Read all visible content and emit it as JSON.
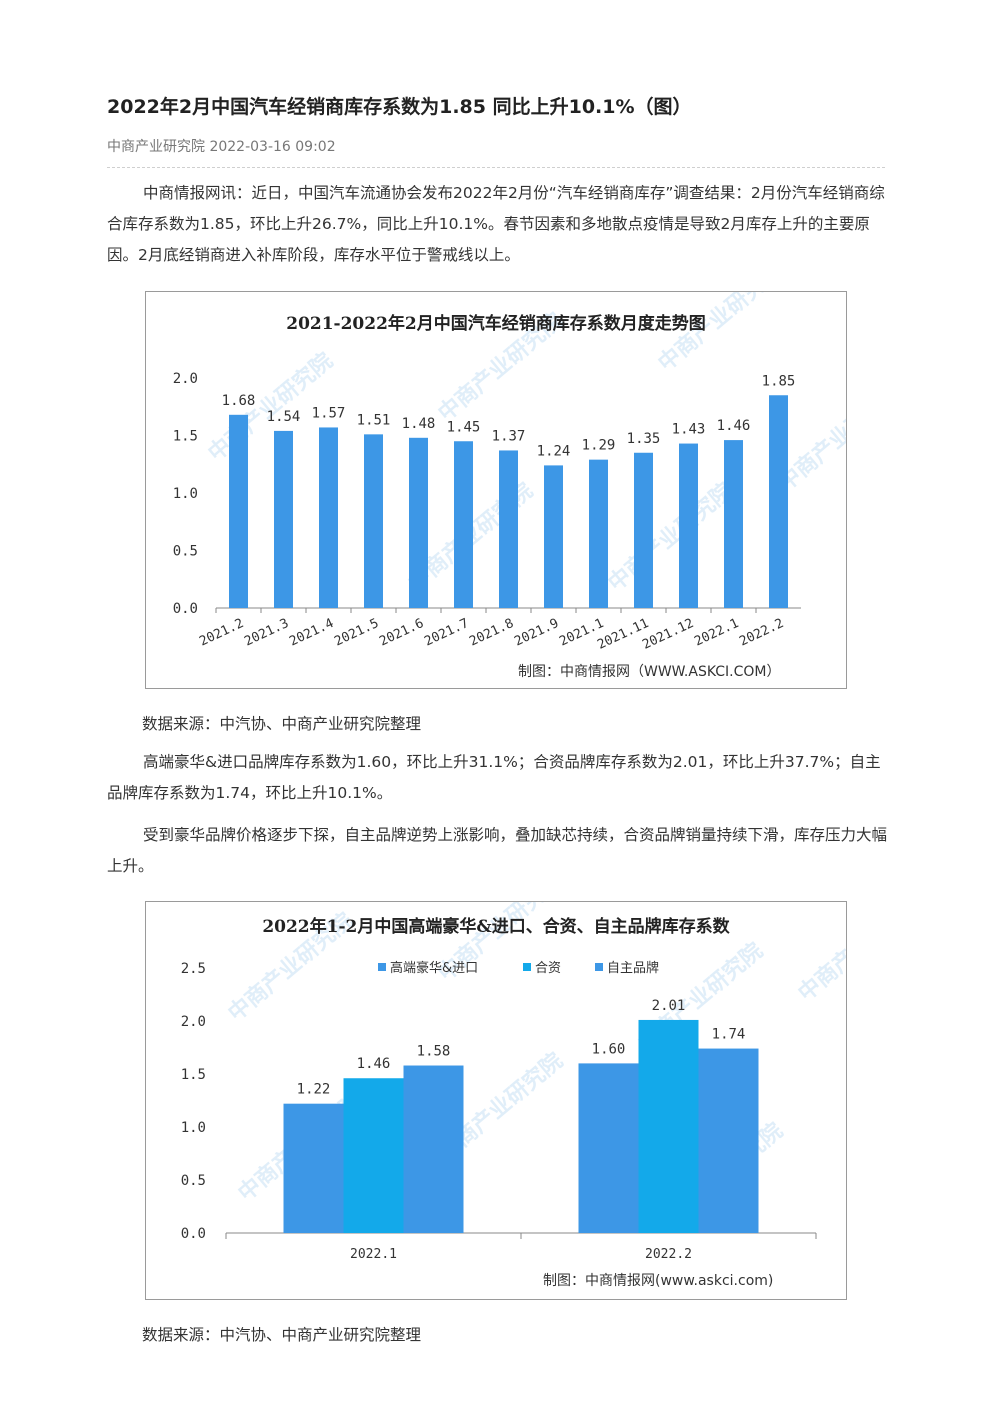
{
  "article": {
    "title": "2022年2月中国汽车经销商库存系数为1.85 同比上升10.1%（图）",
    "meta": "中商产业研究院 2022-03-16 09:02",
    "paragraphs": [
      "中商情报网讯：近日，中国汽车流通协会发布2022年2月份“汽车经销商库存”调查结果：2月份汽车经销商综合库存系数为1.85，环比上升26.7%，同比上升10.1%。春节因素和多地散点疫情是导致2月库存上升的主要原因。2月底经销商进入补库阶段，库存水平位于警戒线以上。",
      "高端豪华&进口品牌库存系数为1.60，环比上升31.1%；合资品牌库存系数为2.01，环比上升37.7%；自主品牌库存系数为1.74，环比上升10.1%。",
      "受到豪华品牌价格逐步下探，自主品牌逆势上涨影响，叠加缺芯持续，合资品牌销量持续下滑，库存压力大幅上升。"
    ],
    "source1": "数据来源：中汽协、中商产业研究院整理",
    "source2": "数据来源：中汽协、中商产业研究院整理"
  },
  "colors": {
    "bar": "#3d97e6",
    "series": [
      "#3d97e6",
      "#13a9ea",
      "#3d97e6"
    ],
    "axis": "#888888"
  },
  "watermark": "中商产业研究院",
  "chart_data": [
    {
      "type": "bar",
      "title": "2021-2022年2月中国汽车经销商库存系数月度走势图",
      "categories": [
        "2021.2",
        "2021.3",
        "2021.4",
        "2021.5",
        "2021.6",
        "2021.7",
        "2021.8",
        "2021.9",
        "2021.1",
        "2021.11",
        "2021.12",
        "2022.1",
        "2022.2"
      ],
      "values": [
        1.68,
        1.54,
        1.57,
        1.51,
        1.48,
        1.45,
        1.37,
        1.24,
        1.29,
        1.35,
        1.43,
        1.46,
        1.85
      ],
      "labels": [
        "1.68",
        "1.54",
        "1.57",
        "1.51",
        "1.48",
        "1.45",
        "1.37",
        "1.24",
        "1.29",
        "1.35",
        "1.43",
        "1.46",
        "1.85"
      ],
      "yticks": [
        "0.0",
        "0.5",
        "1.0",
        "1.5",
        "2.0"
      ],
      "ylim": [
        0,
        2.0
      ],
      "credit": "制图：中商情报网（WWW.ASKCI.COM）",
      "grid": false
    },
    {
      "type": "bar",
      "title": "2022年1-2月中国高端豪华&进口、合资、自主品牌库存系数",
      "categories": [
        "2022.1",
        "2022.2"
      ],
      "series": [
        {
          "name": "高端豪华&进口",
          "values": [
            1.22,
            1.6
          ],
          "labels": [
            "1.22",
            "1.60"
          ]
        },
        {
          "name": "合资",
          "values": [
            1.46,
            2.01
          ],
          "labels": [
            "1.46",
            "2.01"
          ]
        },
        {
          "name": "自主品牌",
          "values": [
            1.58,
            1.74
          ],
          "labels": [
            "1.58",
            "1.74"
          ]
        }
      ],
      "yticks": [
        "0.0",
        "0.5",
        "1.0",
        "1.5",
        "2.0",
        "2.5"
      ],
      "ylim": [
        0,
        2.5
      ],
      "legend": "top",
      "credit": "制图：中商情报网(www.askci.com)",
      "grid": false
    }
  ]
}
